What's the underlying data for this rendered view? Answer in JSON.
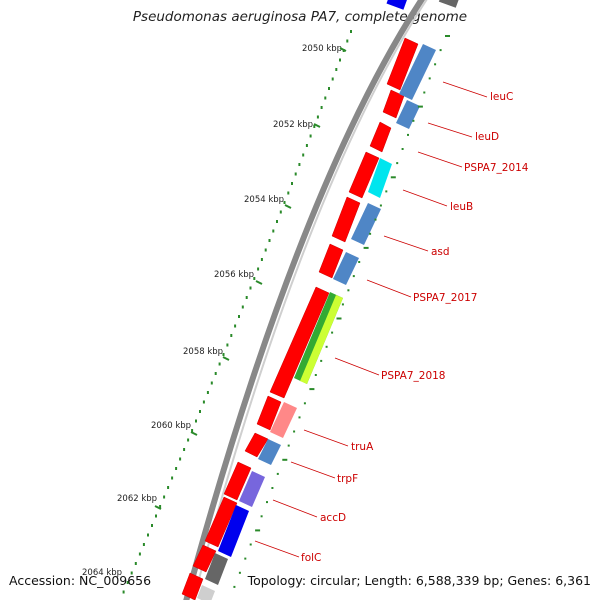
{
  "title": "Pseudomonas aeruginosa PA7, complete genome",
  "footer": {
    "accession_label": "Accession:",
    "accession": "NC_009656",
    "topology_label": "Topology:",
    "topology": "circular",
    "length_label": "Length:",
    "length": "6,588,339 bp",
    "genes_label": "Genes:",
    "genes": "6,361"
  },
  "ticks": [
    {
      "label": "2050 kbp"
    },
    {
      "label": "2052 kbp"
    },
    {
      "label": "2054 kbp"
    },
    {
      "label": "2056 kbp"
    },
    {
      "label": "2058 kbp"
    },
    {
      "label": "2060 kbp"
    },
    {
      "label": "2062 kbp"
    },
    {
      "label": "2064 kbp"
    }
  ],
  "gene_labels": [
    {
      "name": "leuC"
    },
    {
      "name": "leuD"
    },
    {
      "name": "PSPA7_2014"
    },
    {
      "name": "leuB"
    },
    {
      "name": "asd"
    },
    {
      "name": "PSPA7_2017"
    },
    {
      "name": "PSPA7_2018"
    },
    {
      "name": "truA"
    },
    {
      "name": "trpF"
    },
    {
      "name": "accD"
    },
    {
      "name": "folC"
    }
  ],
  "colors": {
    "cds": "#ff0000",
    "cog_blue": "#4f86c6",
    "cog_cyan": "#00e5ee",
    "cog_green": "#33aa33",
    "cog_lime": "#ccff33",
    "cog_pink": "#ff8888",
    "cog_purple": "#7766dd",
    "cog_deepblue": "#0000ee",
    "cog_gray": "#666666",
    "backbone": "#888888",
    "gc_tick": "#2a8a2a",
    "label": "#cc0000"
  }
}
